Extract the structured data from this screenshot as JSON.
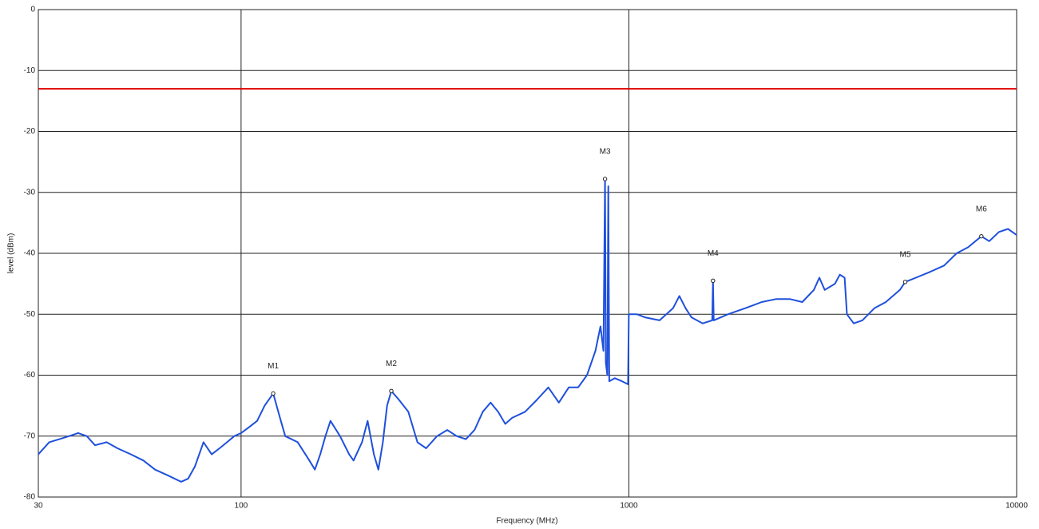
{
  "chart_data": {
    "type": "line",
    "x_label": "Frequency (MHz)",
    "y_label": "level (dBm)",
    "log_x": true,
    "grid": true,
    "xlim": [
      30,
      10000
    ],
    "xticks": [
      30,
      100,
      1000,
      10000
    ],
    "ylim": [
      -80,
      0
    ],
    "yticks": [
      0,
      -10,
      -20,
      -30,
      -40,
      -50,
      -60,
      -70,
      -80
    ],
    "series": [
      {
        "color": "#1f50dc",
        "x": [
          30,
          32,
          34,
          36,
          38,
          40,
          42,
          45,
          48,
          52,
          56,
          60,
          65,
          70,
          73,
          76,
          80,
          84,
          88,
          92,
          96,
          100,
          105,
          110,
          115,
          121,
          126,
          130,
          140,
          150,
          155,
          160,
          165,
          170,
          180,
          190,
          195,
          205,
          212,
          220,
          226,
          232,
          238,
          244,
          255,
          270,
          285,
          300,
          320,
          340,
          360,
          380,
          400,
          420,
          440,
          460,
          480,
          500,
          540,
          580,
          620,
          660,
          700,
          740,
          780,
          820,
          845,
          860,
          868,
          872,
          880,
          885,
          890,
          920,
          960,
          995,
          1000,
          1050,
          1100,
          1200,
          1300,
          1350,
          1400,
          1450,
          1550,
          1640,
          1648,
          1655,
          1800,
          2000,
          2200,
          2400,
          2600,
          2800,
          3000,
          3100,
          3200,
          3400,
          3500,
          3600,
          3650,
          3800,
          4000,
          4300,
          4600,
          5000,
          5160,
          5500,
          6000,
          6500,
          7000,
          7500,
          8110,
          8500,
          9000,
          9500,
          10000
        ],
        "values": [
          -73,
          -71,
          -70.5,
          -70,
          -69.5,
          -70,
          -71.5,
          -71,
          -72,
          -73,
          -74,
          -75.5,
          -76.5,
          -77.5,
          -77,
          -75,
          -71,
          -73,
          -72,
          -71,
          -70,
          -69.5,
          -68.5,
          -67.5,
          -65,
          -63,
          -67,
          -70,
          -71,
          -74,
          -75.5,
          -73,
          -70,
          -67.5,
          -70,
          -73,
          -74,
          -71,
          -67.5,
          -73,
          -75.5,
          -71,
          -65,
          -62.6,
          -64,
          -66,
          -71,
          -72,
          -70,
          -69,
          -70,
          -70.5,
          -69,
          -66,
          -64.5,
          -66,
          -68,
          -67,
          -66,
          -64,
          -62,
          -64.5,
          -62,
          -62,
          -60,
          -56,
          -52,
          -56,
          -27.8,
          -58,
          -60,
          -29,
          -61,
          -60.5,
          -61,
          -61.5,
          -50,
          -50,
          -50.5,
          -51,
          -49,
          -47,
          -49,
          -50.5,
          -51.5,
          -51,
          -44.5,
          -51,
          -50,
          -49,
          -48,
          -47.5,
          -47.5,
          -48,
          -46,
          -44,
          -46,
          -45,
          -43.5,
          -44,
          -50,
          -51.5,
          -51,
          -49,
          -48,
          -46,
          -44.7,
          -44,
          -43,
          -42,
          -40,
          -39,
          -37.2,
          -38,
          -36.5,
          -36,
          -37
        ]
      }
    ],
    "hlines": [
      {
        "y": -13,
        "color": "#e00000"
      }
    ],
    "markers": [
      {
        "label": "M1",
        "x": 121,
        "y": -63
      },
      {
        "label": "M2",
        "x": 244,
        "y": -62.6
      },
      {
        "label": "M3",
        "x": 868,
        "y": -27.8
      },
      {
        "label": "M4",
        "x": 1648,
        "y": -44.5
      },
      {
        "label": "M5",
        "x": 5160,
        "y": -44.7
      },
      {
        "label": "M6",
        "x": 8110,
        "y": -37.2
      }
    ]
  }
}
